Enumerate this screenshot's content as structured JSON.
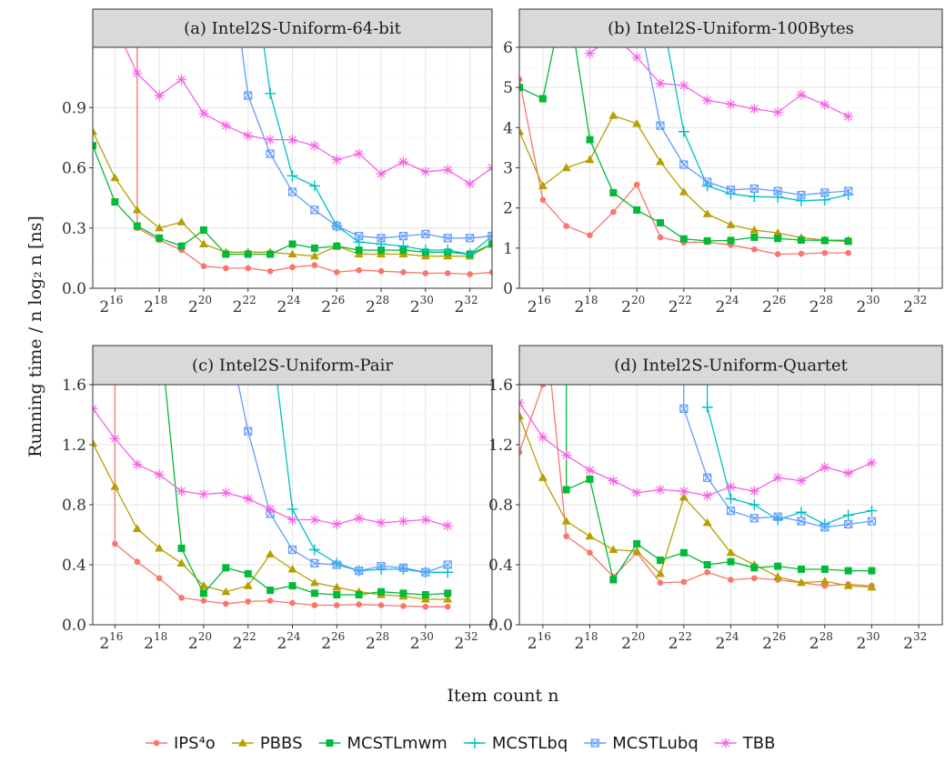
{
  "figure": {
    "ylabel": "Running time / n log₂ n [ns]",
    "xlabel": "Item count n"
  },
  "colors": {
    "IPS4o": "#F8766D",
    "PBBS": "#B79F00",
    "MCSTLmwm": "#00BA38",
    "MCSTLbq": "#00BFC4",
    "MCSTLubq": "#619CFF",
    "TBB": "#F564E3"
  },
  "legend": {
    "items": [
      {
        "key": "IPS4o",
        "label": "IPS⁴o",
        "shape": "circle"
      },
      {
        "key": "PBBS",
        "label": "PBBS",
        "shape": "triangle"
      },
      {
        "key": "MCSTLmwm",
        "label": "MCSTLmwm",
        "shape": "square"
      },
      {
        "key": "MCSTLbq",
        "label": "MCSTLbq",
        "shape": "plus"
      },
      {
        "key": "MCSTLubq",
        "label": "MCSTLubq",
        "shape": "boxx"
      },
      {
        "key": "TBB",
        "label": "TBB",
        "shape": "star"
      }
    ]
  },
  "chart_data": [
    {
      "type": "line",
      "title": "(a) Intel2S-Uniform-64-bit",
      "xscale": "log2",
      "xlim": [
        15,
        33
      ],
      "ylim": [
        0,
        1.2
      ],
      "yticks": [
        0.0,
        0.3,
        0.6,
        0.9
      ],
      "xticks": [
        16,
        18,
        20,
        22,
        24,
        26,
        28,
        30,
        32
      ],
      "grid": true,
      "series": [
        {
          "name": "IPS4o",
          "x": [
            17,
            17,
            18,
            19,
            20,
            21,
            22,
            23,
            24,
            25,
            26,
            27,
            28,
            29,
            30,
            31,
            32,
            33
          ],
          "y": [
            1.8,
            0.3,
            0.24,
            0.19,
            0.11,
            0.1,
            0.1,
            0.085,
            0.105,
            0.115,
            0.08,
            0.09,
            0.085,
            0.08,
            0.075,
            0.075,
            0.07,
            0.08
          ]
        },
        {
          "name": "PBBS",
          "x": [
            15,
            16,
            17,
            18,
            19,
            20,
            21,
            22,
            23,
            24,
            25,
            26,
            27,
            28,
            29,
            30,
            31,
            32,
            33
          ],
          "y": [
            0.78,
            0.55,
            0.39,
            0.3,
            0.33,
            0.22,
            0.18,
            0.18,
            0.18,
            0.17,
            0.16,
            0.21,
            0.17,
            0.17,
            0.17,
            0.16,
            0.16,
            0.16,
            0.22
          ]
        },
        {
          "name": "MCSTLmwm",
          "x": [
            15,
            16,
            17,
            18,
            19,
            20,
            21,
            22,
            23,
            24,
            25,
            26,
            27,
            28,
            29,
            30,
            31,
            32,
            33
          ],
          "y": [
            0.71,
            0.43,
            0.31,
            0.25,
            0.21,
            0.29,
            0.17,
            0.17,
            0.17,
            0.22,
            0.2,
            0.21,
            0.19,
            0.19,
            0.19,
            0.18,
            0.18,
            0.17,
            0.22
          ]
        },
        {
          "name": "MCSTLbq",
          "x": [
            22,
            23,
            24,
            25,
            26,
            27,
            28,
            29,
            30,
            31,
            32,
            33
          ],
          "y": [
            1.8,
            0.97,
            0.56,
            0.51,
            0.31,
            0.23,
            0.22,
            0.21,
            0.19,
            0.19,
            0.17,
            0.26
          ]
        },
        {
          "name": "MCSTLubq",
          "x": [
            21,
            22,
            23,
            24,
            25,
            26,
            27,
            28,
            29,
            30,
            31,
            32,
            33
          ],
          "y": [
            1.8,
            0.96,
            0.67,
            0.48,
            0.39,
            0.31,
            0.26,
            0.25,
            0.26,
            0.27,
            0.25,
            0.25,
            0.26
          ]
        },
        {
          "name": "TBB",
          "x": [
            15,
            17,
            18,
            19,
            20,
            21,
            22,
            23,
            24,
            25,
            26,
            27,
            28,
            29,
            30,
            31,
            32,
            33
          ],
          "y": [
            1.55,
            1.07,
            0.96,
            1.04,
            0.87,
            0.81,
            0.76,
            0.74,
            0.74,
            0.71,
            0.64,
            0.67,
            0.57,
            0.63,
            0.58,
            0.59,
            0.52,
            0.6
          ]
        }
      ]
    },
    {
      "type": "line",
      "title": "(b) Intel2S-Uniform-100Bytes",
      "xscale": "log2",
      "xlim": [
        15,
        33
      ],
      "ylim": [
        0,
        6
      ],
      "yticks": [
        0,
        1,
        2,
        3,
        4,
        5,
        6
      ],
      "xticks": [
        16,
        18,
        20,
        22,
        24,
        26,
        28,
        30,
        32
      ],
      "grid": true,
      "series": [
        {
          "name": "IPS4o",
          "x": [
            15,
            16,
            17,
            18,
            19,
            20,
            21,
            22,
            23,
            24,
            25,
            26,
            27,
            28,
            29
          ],
          "y": [
            5.2,
            2.2,
            1.55,
            1.32,
            1.9,
            2.58,
            1.27,
            1.14,
            1.15,
            1.08,
            0.97,
            0.85,
            0.86,
            0.88,
            0.88
          ]
        },
        {
          "name": "PBBS",
          "x": [
            15,
            16,
            17,
            18,
            19,
            20,
            21,
            22,
            23,
            24,
            25,
            26,
            27,
            28,
            29
          ],
          "y": [
            3.9,
            2.55,
            3.0,
            3.2,
            4.3,
            4.1,
            3.15,
            2.4,
            1.85,
            1.58,
            1.45,
            1.38,
            1.26,
            1.2,
            1.2
          ]
        },
        {
          "name": "MCSTLmwm",
          "x": [
            15,
            16,
            17,
            18,
            19,
            20,
            21,
            22,
            23,
            24,
            25,
            26,
            27,
            28,
            29
          ],
          "y": [
            5.0,
            4.72,
            7.5,
            3.7,
            2.38,
            1.95,
            1.63,
            1.23,
            1.18,
            1.19,
            1.27,
            1.24,
            1.2,
            1.19,
            1.17
          ]
        },
        {
          "name": "MCSTLbq",
          "x": [
            21,
            22,
            23,
            24,
            25,
            26,
            27,
            28,
            29
          ],
          "y": [
            7.0,
            3.9,
            2.55,
            2.35,
            2.28,
            2.27,
            2.18,
            2.2,
            2.33
          ]
        },
        {
          "name": "MCSTLubq",
          "x": [
            20,
            21,
            22,
            23,
            24,
            25,
            26,
            27,
            28,
            29
          ],
          "y": [
            7.0,
            4.05,
            3.08,
            2.65,
            2.45,
            2.48,
            2.42,
            2.32,
            2.38,
            2.42
          ]
        },
        {
          "name": "TBB",
          "x": [
            18,
            19,
            20,
            21,
            22,
            23,
            24,
            25,
            26,
            27,
            28,
            29
          ],
          "y": [
            5.85,
            6.3,
            5.75,
            5.1,
            5.05,
            4.68,
            4.58,
            4.47,
            4.38,
            4.82,
            4.57,
            4.28
          ]
        }
      ]
    },
    {
      "type": "line",
      "title": "(c) Intel2S-Uniform-Pair",
      "xscale": "log2",
      "xlim": [
        15,
        33
      ],
      "ylim": [
        0,
        1.6
      ],
      "yticks": [
        0.0,
        0.4,
        0.8,
        1.2,
        1.6
      ],
      "xticks": [
        16,
        18,
        20,
        22,
        24,
        26,
        28,
        30,
        32
      ],
      "grid": true,
      "series": [
        {
          "name": "IPS4o",
          "x": [
            16,
            16,
            17,
            18,
            19,
            20,
            21,
            22,
            23,
            24,
            25,
            26,
            27,
            28,
            29,
            30,
            31
          ],
          "y": [
            2.2,
            0.54,
            0.42,
            0.31,
            0.18,
            0.16,
            0.14,
            0.155,
            0.16,
            0.145,
            0.13,
            0.13,
            0.135,
            0.13,
            0.125,
            0.12,
            0.12
          ]
        },
        {
          "name": "PBBS",
          "x": [
            15,
            16,
            17,
            18,
            19,
            20,
            21,
            22,
            23,
            24,
            25,
            26,
            27,
            28,
            29,
            30,
            31
          ],
          "y": [
            1.21,
            0.92,
            0.64,
            0.51,
            0.41,
            0.26,
            0.22,
            0.26,
            0.47,
            0.37,
            0.28,
            0.25,
            0.22,
            0.2,
            0.19,
            0.17,
            0.17
          ]
        },
        {
          "name": "MCSTLmwm",
          "x": [
            18,
            19,
            20,
            21,
            22,
            23,
            24,
            25,
            26,
            27,
            28,
            29,
            30,
            31
          ],
          "y": [
            2.0,
            0.51,
            0.21,
            0.38,
            0.34,
            0.23,
            0.26,
            0.21,
            0.2,
            0.2,
            0.22,
            0.21,
            0.2,
            0.21
          ]
        },
        {
          "name": "MCSTLbq",
          "x": [
            23,
            24,
            25,
            26,
            27,
            28,
            29,
            30,
            31
          ],
          "y": [
            2.0,
            0.77,
            0.5,
            0.41,
            0.36,
            0.37,
            0.37,
            0.35,
            0.35
          ]
        },
        {
          "name": "MCSTLubq",
          "x": [
            21,
            22,
            23,
            24,
            25,
            26,
            27,
            28,
            29,
            30,
            31
          ],
          "y": [
            2.0,
            1.29,
            0.74,
            0.5,
            0.41,
            0.4,
            0.36,
            0.39,
            0.38,
            0.35,
            0.4
          ]
        },
        {
          "name": "TBB",
          "x": [
            15,
            16,
            17,
            18,
            19,
            20,
            21,
            22,
            23,
            24,
            25,
            26,
            27,
            28,
            29,
            30,
            31
          ],
          "y": [
            1.44,
            1.24,
            1.07,
            1.0,
            0.89,
            0.87,
            0.88,
            0.84,
            0.77,
            0.7,
            0.7,
            0.67,
            0.71,
            0.68,
            0.69,
            0.7,
            0.66
          ]
        }
      ]
    },
    {
      "type": "line",
      "title": "(d) Intel2S-Uniform-Quartet",
      "xscale": "log2",
      "xlim": [
        15,
        33
      ],
      "ylim": [
        0,
        1.6
      ],
      "yticks": [
        0.0,
        0.4,
        0.8,
        1.2,
        1.6
      ],
      "xticks": [
        16,
        18,
        20,
        22,
        24,
        26,
        28,
        30,
        32
      ],
      "grid": true,
      "series": [
        {
          "name": "IPS4o",
          "x": [
            15,
            16,
            16.3,
            17,
            18,
            19,
            20,
            21,
            22,
            23,
            24,
            25,
            26,
            27,
            28,
            29,
            30
          ],
          "y": [
            1.15,
            1.6,
            1.7,
            0.59,
            0.48,
            0.32,
            0.48,
            0.28,
            0.285,
            0.35,
            0.3,
            0.31,
            0.3,
            0.28,
            0.26,
            0.27,
            0.26
          ]
        },
        {
          "name": "PBBS",
          "x": [
            15,
            16,
            17,
            18,
            19,
            20,
            21,
            22,
            23,
            24,
            25,
            26,
            27,
            28,
            29,
            30
          ],
          "y": [
            1.39,
            0.98,
            0.69,
            0.59,
            0.5,
            0.49,
            0.34,
            0.85,
            0.68,
            0.48,
            0.4,
            0.32,
            0.28,
            0.29,
            0.26,
            0.25
          ]
        },
        {
          "name": "MCSTLmwm",
          "x": [
            17,
            17,
            18,
            19,
            20,
            21,
            22,
            23,
            24,
            25,
            26,
            27,
            28,
            29,
            30
          ],
          "y": [
            2.0,
            0.9,
            0.97,
            0.3,
            0.54,
            0.43,
            0.48,
            0.4,
            0.42,
            0.38,
            0.39,
            0.37,
            0.37,
            0.36,
            0.36
          ]
        },
        {
          "name": "MCSTLbq",
          "x": [
            23,
            23,
            24,
            25,
            26,
            27,
            28,
            29,
            30
          ],
          "y": [
            2.0,
            1.45,
            0.84,
            0.8,
            0.7,
            0.75,
            0.67,
            0.73,
            0.76
          ]
        },
        {
          "name": "MCSTLubq",
          "x": [
            22,
            22,
            23,
            24,
            25,
            26,
            27,
            28,
            29,
            30
          ],
          "y": [
            2.0,
            1.44,
            0.98,
            0.76,
            0.71,
            0.72,
            0.69,
            0.65,
            0.67,
            0.69
          ]
        },
        {
          "name": "TBB",
          "x": [
            15,
            16,
            17,
            18,
            19,
            20,
            21,
            22,
            23,
            24,
            25,
            26,
            27,
            28,
            29,
            30
          ],
          "y": [
            1.48,
            1.25,
            1.13,
            1.03,
            0.96,
            0.88,
            0.9,
            0.89,
            0.86,
            0.92,
            0.89,
            0.98,
            0.96,
            1.05,
            1.01,
            1.08
          ]
        }
      ]
    }
  ]
}
